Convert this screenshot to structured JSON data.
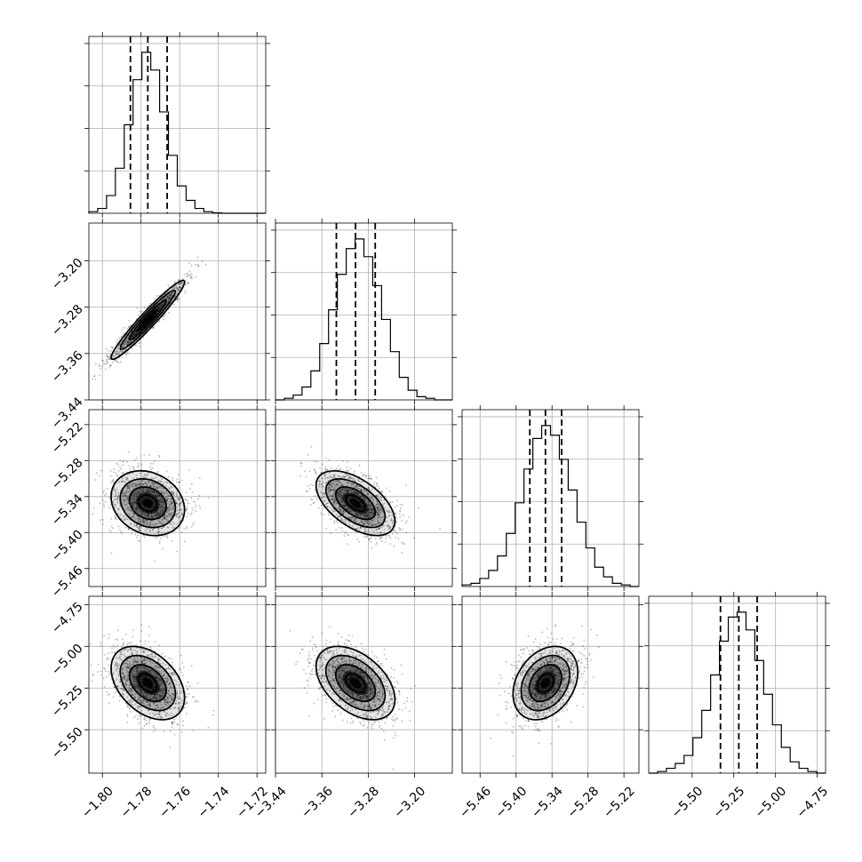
{
  "chart_data": {
    "type": "corner",
    "grid": true,
    "parameters": [
      {
        "index": 0,
        "range": [
          -1.807,
          -1.7155
        ],
        "ticks": [
          -1.8,
          -1.78,
          -1.76,
          -1.74,
          -1.72
        ],
        "tick_labels": [
          "−1.80",
          "−1.78",
          "−1.76",
          "−1.74",
          "−1.72"
        ],
        "median": -1.7765,
        "q16": -1.7855,
        "q84": -1.7665
      },
      {
        "index": 1,
        "range": [
          -3.44,
          -3.135
        ],
        "ticks": [
          -3.44,
          -3.36,
          -3.28,
          -3.2
        ],
        "tick_labels": [
          "−3.44",
          "−3.36",
          "−3.28",
          "−3.20"
        ],
        "median": -3.302,
        "q16": -3.335,
        "q84": -3.268
      },
      {
        "index": 2,
        "range": [
          -5.49,
          -5.195
        ],
        "ticks": [
          -5.46,
          -5.4,
          -5.34,
          -5.28,
          -5.22
        ],
        "tick_labels": [
          "−5.46",
          "−5.40",
          "−5.34",
          "−5.28",
          "−5.22"
        ],
        "median": -5.351,
        "q16": -5.377,
        "q84": -5.324
      },
      {
        "index": 3,
        "range": [
          -5.76,
          -4.7
        ],
        "ticks": [
          -5.5,
          -5.25,
          -5.0,
          -4.75
        ],
        "tick_labels": [
          "−5.50",
          "−5.25",
          "−5.00",
          "−4.75"
        ],
        "median": -5.22,
        "q16": -5.33,
        "q84": -5.11
      }
    ],
    "histograms": [
      {
        "param": 0,
        "counts": [
          0.01,
          0.03,
          0.11,
          0.28,
          0.55,
          0.83,
          1.0,
          0.89,
          0.63,
          0.36,
          0.17,
          0.08,
          0.03,
          0.01,
          0.003,
          0.0,
          0.0,
          0.0,
          0.0,
          0.0
        ]
      },
      {
        "param": 1,
        "counts": [
          0.0,
          0.01,
          0.03,
          0.08,
          0.18,
          0.35,
          0.56,
          0.78,
          0.94,
          1.0,
          0.89,
          0.71,
          0.5,
          0.3,
          0.14,
          0.06,
          0.02,
          0.01,
          0.0,
          0.0
        ]
      },
      {
        "param": 2,
        "counts": [
          0.01,
          0.02,
          0.05,
          0.1,
          0.19,
          0.33,
          0.52,
          0.73,
          0.92,
          1.0,
          0.94,
          0.79,
          0.6,
          0.4,
          0.24,
          0.12,
          0.06,
          0.02,
          0.01,
          0.0
        ]
      },
      {
        "param": 3,
        "counts": [
          0.0,
          0.01,
          0.03,
          0.06,
          0.11,
          0.22,
          0.39,
          0.61,
          0.82,
          0.97,
          1.0,
          0.89,
          0.7,
          0.49,
          0.3,
          0.16,
          0.07,
          0.03,
          0.01,
          0.0
        ]
      }
    ],
    "pairs": [
      {
        "x": 0,
        "y": 1,
        "center": [
          -1.7765,
          -3.302
        ],
        "sigma": [
          0.0095,
          0.034
        ],
        "rho": 0.96
      },
      {
        "x": 0,
        "y": 2,
        "center": [
          -1.7765,
          -5.351
        ],
        "sigma": [
          0.0095,
          0.027
        ],
        "rho": -0.2
      },
      {
        "x": 1,
        "y": 2,
        "center": [
          -3.302,
          -5.351
        ],
        "sigma": [
          0.034,
          0.027
        ],
        "rho": -0.55
      },
      {
        "x": 0,
        "y": 3,
        "center": [
          -1.7765,
          -5.22
        ],
        "sigma": [
          0.0095,
          0.11
        ],
        "rho": -0.4
      },
      {
        "x": 1,
        "y": 3,
        "center": [
          -3.302,
          -5.22
        ],
        "sigma": [
          0.034,
          0.11
        ],
        "rho": -0.45
      },
      {
        "x": 2,
        "y": 3,
        "center": [
          -5.351,
          -5.22
        ],
        "sigma": [
          0.027,
          0.11
        ],
        "rho": 0.3
      }
    ],
    "contour_levels": [
      0.5,
      1.0,
      1.5,
      2.0
    ]
  }
}
